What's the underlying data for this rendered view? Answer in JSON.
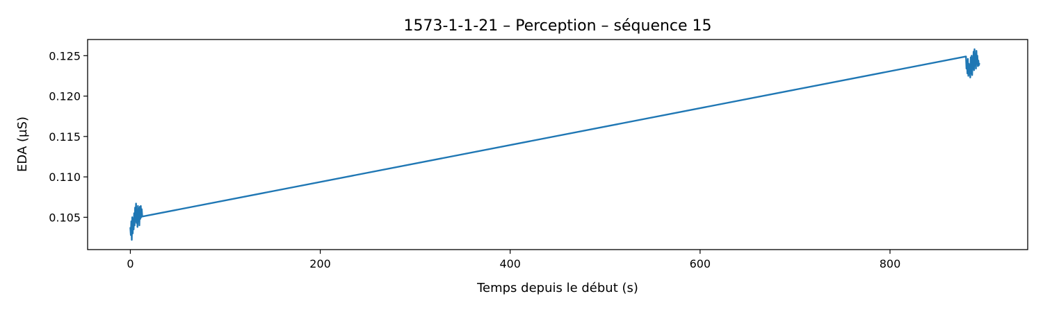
{
  "chart_data": {
    "type": "line",
    "title": "1573-1-1-21 – Perception – séquence 15",
    "xlabel": "Temps depuis le début (s)",
    "ylabel": "EDA (µS)",
    "xlim": [
      -45,
      945
    ],
    "ylim": [
      0.101,
      0.127
    ],
    "xticks": [
      0,
      200,
      400,
      600,
      800
    ],
    "xtick_labels": [
      "0",
      "200",
      "400",
      "600",
      "800"
    ],
    "yticks": [
      0.105,
      0.11,
      0.115,
      0.12,
      0.125
    ],
    "ytick_labels": [
      "0.105",
      "0.110",
      "0.115",
      "0.120",
      "0.125"
    ],
    "grid": false,
    "color": "#1f77b4",
    "series": [
      {
        "x": [
          0,
          0.5,
          1,
          1.5,
          2,
          2.5,
          3,
          3.5,
          4,
          4.5,
          5,
          5.5,
          6,
          6.5,
          7,
          7.5,
          8,
          8.5,
          9,
          9.5,
          10,
          10.5,
          11,
          11.5,
          12,
          12.5,
          13,
          880,
          880.5,
          881,
          881.5,
          882,
          882.5,
          883,
          883.5,
          884,
          884.5,
          885,
          885.5,
          886,
          886.5,
          887,
          887.5,
          888,
          888.5,
          889,
          889.5,
          890,
          890.5,
          891,
          891.5,
          892,
          892.5,
          893,
          893.5,
          894
        ],
        "y": [
          0.1037,
          0.1028,
          0.1045,
          0.1022,
          0.105,
          0.103,
          0.1048,
          0.1035,
          0.1055,
          0.104,
          0.1062,
          0.1045,
          0.1067,
          0.1043,
          0.1058,
          0.1038,
          0.1064,
          0.1046,
          0.1061,
          0.104,
          0.1063,
          0.1048,
          0.1064,
          0.105,
          0.106,
          0.1051,
          0.1051,
          0.1249,
          0.1234,
          0.1242,
          0.1228,
          0.1246,
          0.1225,
          0.124,
          0.123,
          0.1236,
          0.1223,
          0.1248,
          0.1228,
          0.125,
          0.1226,
          0.1245,
          0.1235,
          0.1255,
          0.1232,
          0.1258,
          0.1238,
          0.1252,
          0.1234,
          0.1256,
          0.124,
          0.125,
          0.1237,
          0.1244,
          0.1238,
          0.124
        ]
      }
    ]
  }
}
